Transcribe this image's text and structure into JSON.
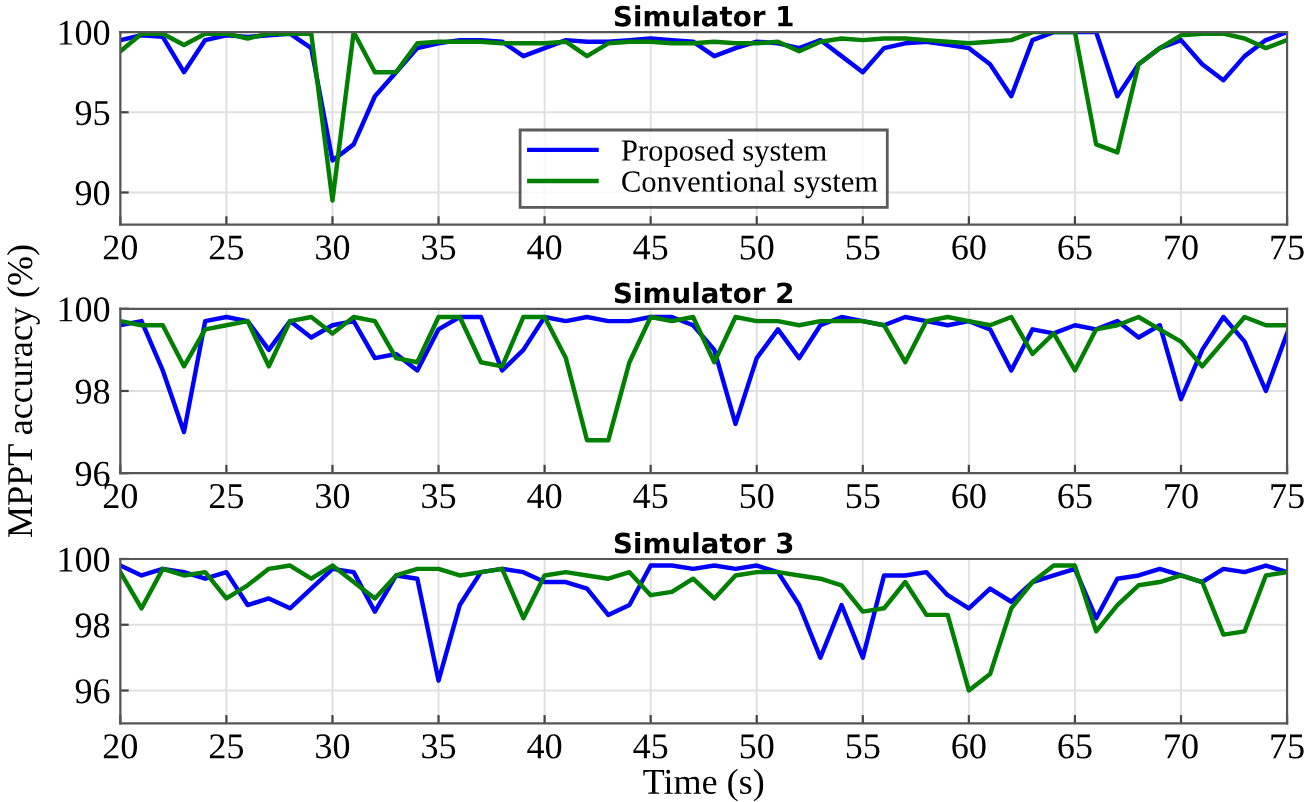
{
  "chart_data": [
    {
      "type": "line",
      "title": "Simulator 1",
      "x": [
        20,
        21,
        22,
        23,
        24,
        25,
        26,
        27,
        28,
        29,
        30,
        31,
        32,
        33,
        34,
        35,
        36,
        37,
        38,
        39,
        40,
        41,
        42,
        43,
        44,
        45,
        46,
        47,
        48,
        49,
        50,
        51,
        52,
        53,
        54,
        55,
        56,
        57,
        58,
        59,
        60,
        61,
        62,
        63,
        64,
        65,
        66,
        67,
        68,
        69,
        70,
        71,
        72,
        73,
        74,
        75
      ],
      "series": [
        {
          "name": "Proposed system",
          "color": "#0000ff",
          "values": [
            99.5,
            99.8,
            99.7,
            97.5,
            99.5,
            99.8,
            99.7,
            99.8,
            99.9,
            99,
            92,
            93,
            96,
            97.5,
            99,
            99.3,
            99.5,
            99.5,
            99.4,
            98.5,
            99,
            99.5,
            99.4,
            99.4,
            99.5,
            99.6,
            99.5,
            99.4,
            98.5,
            99,
            99.4,
            99.3,
            99,
            99.5,
            98.5,
            97.5,
            99,
            99.3,
            99.4,
            99.2,
            99,
            98,
            96,
            99.5,
            100,
            100,
            100,
            96,
            98,
            99,
            99.5,
            98,
            97,
            98.5,
            99.5,
            100
          ]
        },
        {
          "name": "Conventional system",
          "color": "#008000",
          "values": [
            98.8,
            99.9,
            99.9,
            99.2,
            99.9,
            99.9,
            99.6,
            99.9,
            99.9,
            99.9,
            89.5,
            100,
            97.5,
            97.5,
            99.3,
            99.4,
            99.4,
            99.4,
            99.3,
            99.3,
            99.3,
            99.4,
            98.5,
            99.3,
            99.4,
            99.4,
            99.3,
            99.3,
            99.4,
            99.3,
            99.3,
            99.4,
            98.8,
            99.4,
            99.6,
            99.5,
            99.6,
            99.6,
            99.5,
            99.4,
            99.3,
            99.4,
            99.5,
            100,
            100,
            100,
            93,
            92.5,
            98,
            99,
            99.8,
            99.9,
            99.9,
            99.6,
            99,
            99.5
          ]
        }
      ],
      "xlim": [
        20,
        75
      ],
      "xticks": [
        20,
        25,
        30,
        35,
        40,
        45,
        50,
        55,
        60,
        65,
        70,
        75
      ],
      "ylim": [
        88,
        100
      ],
      "yticks": [
        90,
        95,
        100
      ],
      "grid": true,
      "legend": "bottom"
    },
    {
      "type": "line",
      "title": "Simulator 2",
      "ylabel": "MPPT accuracy (%)",
      "x": [
        20,
        21,
        22,
        23,
        24,
        25,
        26,
        27,
        28,
        29,
        30,
        31,
        32,
        33,
        34,
        35,
        36,
        37,
        38,
        39,
        40,
        41,
        42,
        43,
        44,
        45,
        46,
        47,
        48,
        49,
        50,
        51,
        52,
        53,
        54,
        55,
        56,
        57,
        58,
        59,
        60,
        61,
        62,
        63,
        64,
        65,
        66,
        67,
        68,
        69,
        70,
        71,
        72,
        73,
        74,
        75
      ],
      "series": [
        {
          "color": "#0000ff",
          "values": [
            99.6,
            99.7,
            98.5,
            97,
            99.7,
            99.8,
            99.7,
            99,
            99.7,
            99.3,
            99.6,
            99.7,
            98.8,
            98.9,
            98.5,
            99.5,
            99.8,
            99.8,
            98.5,
            99,
            99.8,
            99.7,
            99.8,
            99.7,
            99.7,
            99.8,
            99.8,
            99.6,
            99,
            97.2,
            98.8,
            99.5,
            98.8,
            99.6,
            99.8,
            99.7,
            99.6,
            99.8,
            99.7,
            99.6,
            99.7,
            99.5,
            98.5,
            99.5,
            99.4,
            99.6,
            99.5,
            99.7,
            99.3,
            99.6,
            97.8,
            99,
            99.8,
            99.2,
            98,
            99.4
          ]
        },
        {
          "color": "#008000",
          "values": [
            99.7,
            99.6,
            99.6,
            98.6,
            99.5,
            99.6,
            99.7,
            98.6,
            99.7,
            99.8,
            99.4,
            99.8,
            99.7,
            98.8,
            98.7,
            99.8,
            99.8,
            98.7,
            98.6,
            99.8,
            99.8,
            98.8,
            96.8,
            96.8,
            98.7,
            99.8,
            99.7,
            99.8,
            98.7,
            99.8,
            99.7,
            99.7,
            99.6,
            99.7,
            99.7,
            99.7,
            99.6,
            98.7,
            99.7,
            99.8,
            99.7,
            99.6,
            99.8,
            98.9,
            99.4,
            98.5,
            99.5,
            99.6,
            99.8,
            99.5,
            99.2,
            98.6,
            99.2,
            99.8,
            99.6,
            99.6
          ]
        }
      ],
      "xlim": [
        20,
        75
      ],
      "xticks": [
        20,
        25,
        30,
        35,
        40,
        45,
        50,
        55,
        60,
        65,
        70,
        75
      ],
      "ylim": [
        96,
        100
      ],
      "yticks": [
        96,
        98,
        100
      ],
      "grid": true
    },
    {
      "type": "line",
      "title": "Simulator 3",
      "xlabel": "Time (s)",
      "x": [
        20,
        21,
        22,
        23,
        24,
        25,
        26,
        27,
        28,
        29,
        30,
        31,
        32,
        33,
        34,
        35,
        36,
        37,
        38,
        39,
        40,
        41,
        42,
        43,
        44,
        45,
        46,
        47,
        48,
        49,
        50,
        51,
        52,
        53,
        54,
        55,
        56,
        57,
        58,
        59,
        60,
        61,
        62,
        63,
        64,
        65,
        66,
        67,
        68,
        69,
        70,
        71,
        72,
        73,
        74,
        75
      ],
      "series": [
        {
          "color": "#0000ff",
          "values": [
            99.8,
            99.5,
            99.7,
            99.6,
            99.4,
            99.6,
            98.6,
            98.8,
            98.5,
            99.1,
            99.7,
            99.6,
            98.4,
            99.5,
            99.4,
            96.3,
            98.6,
            99.6,
            99.7,
            99.6,
            99.3,
            99.3,
            99.1,
            98.3,
            98.6,
            99.8,
            99.8,
            99.7,
            99.8,
            99.7,
            99.8,
            99.6,
            98.6,
            97,
            98.6,
            97,
            99.5,
            99.5,
            99.6,
            98.9,
            98.5,
            99.1,
            98.7,
            99.3,
            99.5,
            99.7,
            98.2,
            99.4,
            99.5,
            99.7,
            99.5,
            99.3,
            99.7,
            99.6,
            99.8,
            99.6
          ]
        },
        {
          "color": "#008000",
          "values": [
            99.6,
            98.5,
            99.7,
            99.5,
            99.6,
            98.8,
            99.2,
            99.7,
            99.8,
            99.4,
            99.8,
            99.3,
            98.8,
            99.5,
            99.7,
            99.7,
            99.5,
            99.6,
            99.7,
            98.2,
            99.5,
            99.6,
            99.5,
            99.4,
            99.6,
            98.9,
            99,
            99.4,
            98.8,
            99.5,
            99.6,
            99.6,
            99.5,
            99.4,
            99.2,
            98.4,
            98.5,
            99.3,
            98.3,
            98.3,
            96,
            96.5,
            98.5,
            99.3,
            99.8,
            99.8,
            97.8,
            98.6,
            99.2,
            99.3,
            99.5,
            99.3,
            97.7,
            97.8,
            99.5,
            99.6
          ]
        }
      ],
      "xlim": [
        20,
        75
      ],
      "xticks": [
        20,
        25,
        30,
        35,
        40,
        45,
        50,
        55,
        60,
        65,
        70,
        75
      ],
      "ylim": [
        95,
        100
      ],
      "yticks": [
        96,
        98,
        100
      ],
      "grid": true
    }
  ]
}
